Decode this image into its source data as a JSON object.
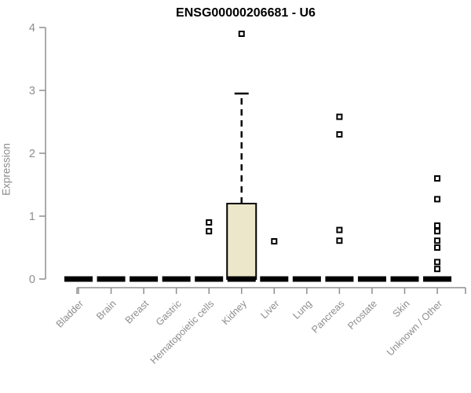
{
  "chart_data": {
    "type": "boxplot",
    "title": "ENSG00000206681 - U6",
    "ylabel": "Expression",
    "xlabel": "",
    "ylim": [
      0,
      4
    ],
    "yticks": [
      0,
      1,
      2,
      3,
      4
    ],
    "grid": false,
    "legend": "none",
    "categories": [
      "Bladder",
      "Brain",
      "Breast",
      "Gastric",
      "Hematopoietic cells",
      "Kidney",
      "Liver",
      "Lung",
      "Pancreas",
      "Prostate",
      "Skin",
      "Unknown / Other"
    ],
    "series": [
      {
        "category": "Bladder",
        "whisker_low": 0,
        "q1": 0,
        "median": 0,
        "q3": 0,
        "whisker_high": 0,
        "outliers": []
      },
      {
        "category": "Brain",
        "whisker_low": 0,
        "q1": 0,
        "median": 0,
        "q3": 0,
        "whisker_high": 0,
        "outliers": []
      },
      {
        "category": "Breast",
        "whisker_low": 0,
        "q1": 0,
        "median": 0,
        "q3": 0,
        "whisker_high": 0,
        "outliers": []
      },
      {
        "category": "Gastric",
        "whisker_low": 0,
        "q1": 0,
        "median": 0,
        "q3": 0,
        "whisker_high": 0,
        "outliers": []
      },
      {
        "category": "Hematopoietic cells",
        "whisker_low": 0,
        "q1": 0,
        "median": 0,
        "q3": 0,
        "whisker_high": 0,
        "outliers": [
          0.9,
          0.76
        ]
      },
      {
        "category": "Kidney",
        "whisker_low": 0,
        "q1": 0,
        "median": 0,
        "q3": 1.2,
        "whisker_high": 2.95,
        "outliers": [
          3.9
        ]
      },
      {
        "category": "Liver",
        "whisker_low": 0,
        "q1": 0,
        "median": 0,
        "q3": 0,
        "whisker_high": 0,
        "outliers": [
          0.6
        ]
      },
      {
        "category": "Lung",
        "whisker_low": 0,
        "q1": 0,
        "median": 0,
        "q3": 0,
        "whisker_high": 0,
        "outliers": []
      },
      {
        "category": "Pancreas",
        "whisker_low": 0,
        "q1": 0,
        "median": 0,
        "q3": 0,
        "whisker_high": 0,
        "outliers": [
          2.58,
          2.3,
          0.78,
          0.61
        ]
      },
      {
        "category": "Prostate",
        "whisker_low": 0,
        "q1": 0,
        "median": 0,
        "q3": 0,
        "whisker_high": 0,
        "outliers": []
      },
      {
        "category": "Skin",
        "whisker_low": 0,
        "q1": 0,
        "median": 0,
        "q3": 0,
        "whisker_high": 0,
        "outliers": []
      },
      {
        "category": "Unknown / Other",
        "whisker_low": 0,
        "q1": 0,
        "median": 0,
        "q3": 0,
        "whisker_high": 0,
        "outliers": [
          1.6,
          1.27,
          0.85,
          0.76,
          0.61,
          0.5,
          0.27,
          0.16
        ]
      }
    ],
    "colors": {
      "box_fill": "#ECE6CA",
      "box_stroke": "#000000",
      "median": "#000000",
      "outlier_stroke": "#000000",
      "outlier_fill": "#ffffff",
      "axis": "#8f8f8f",
      "label": "#8d8d8d",
      "title": "#000000",
      "background": "#ffffff"
    }
  }
}
